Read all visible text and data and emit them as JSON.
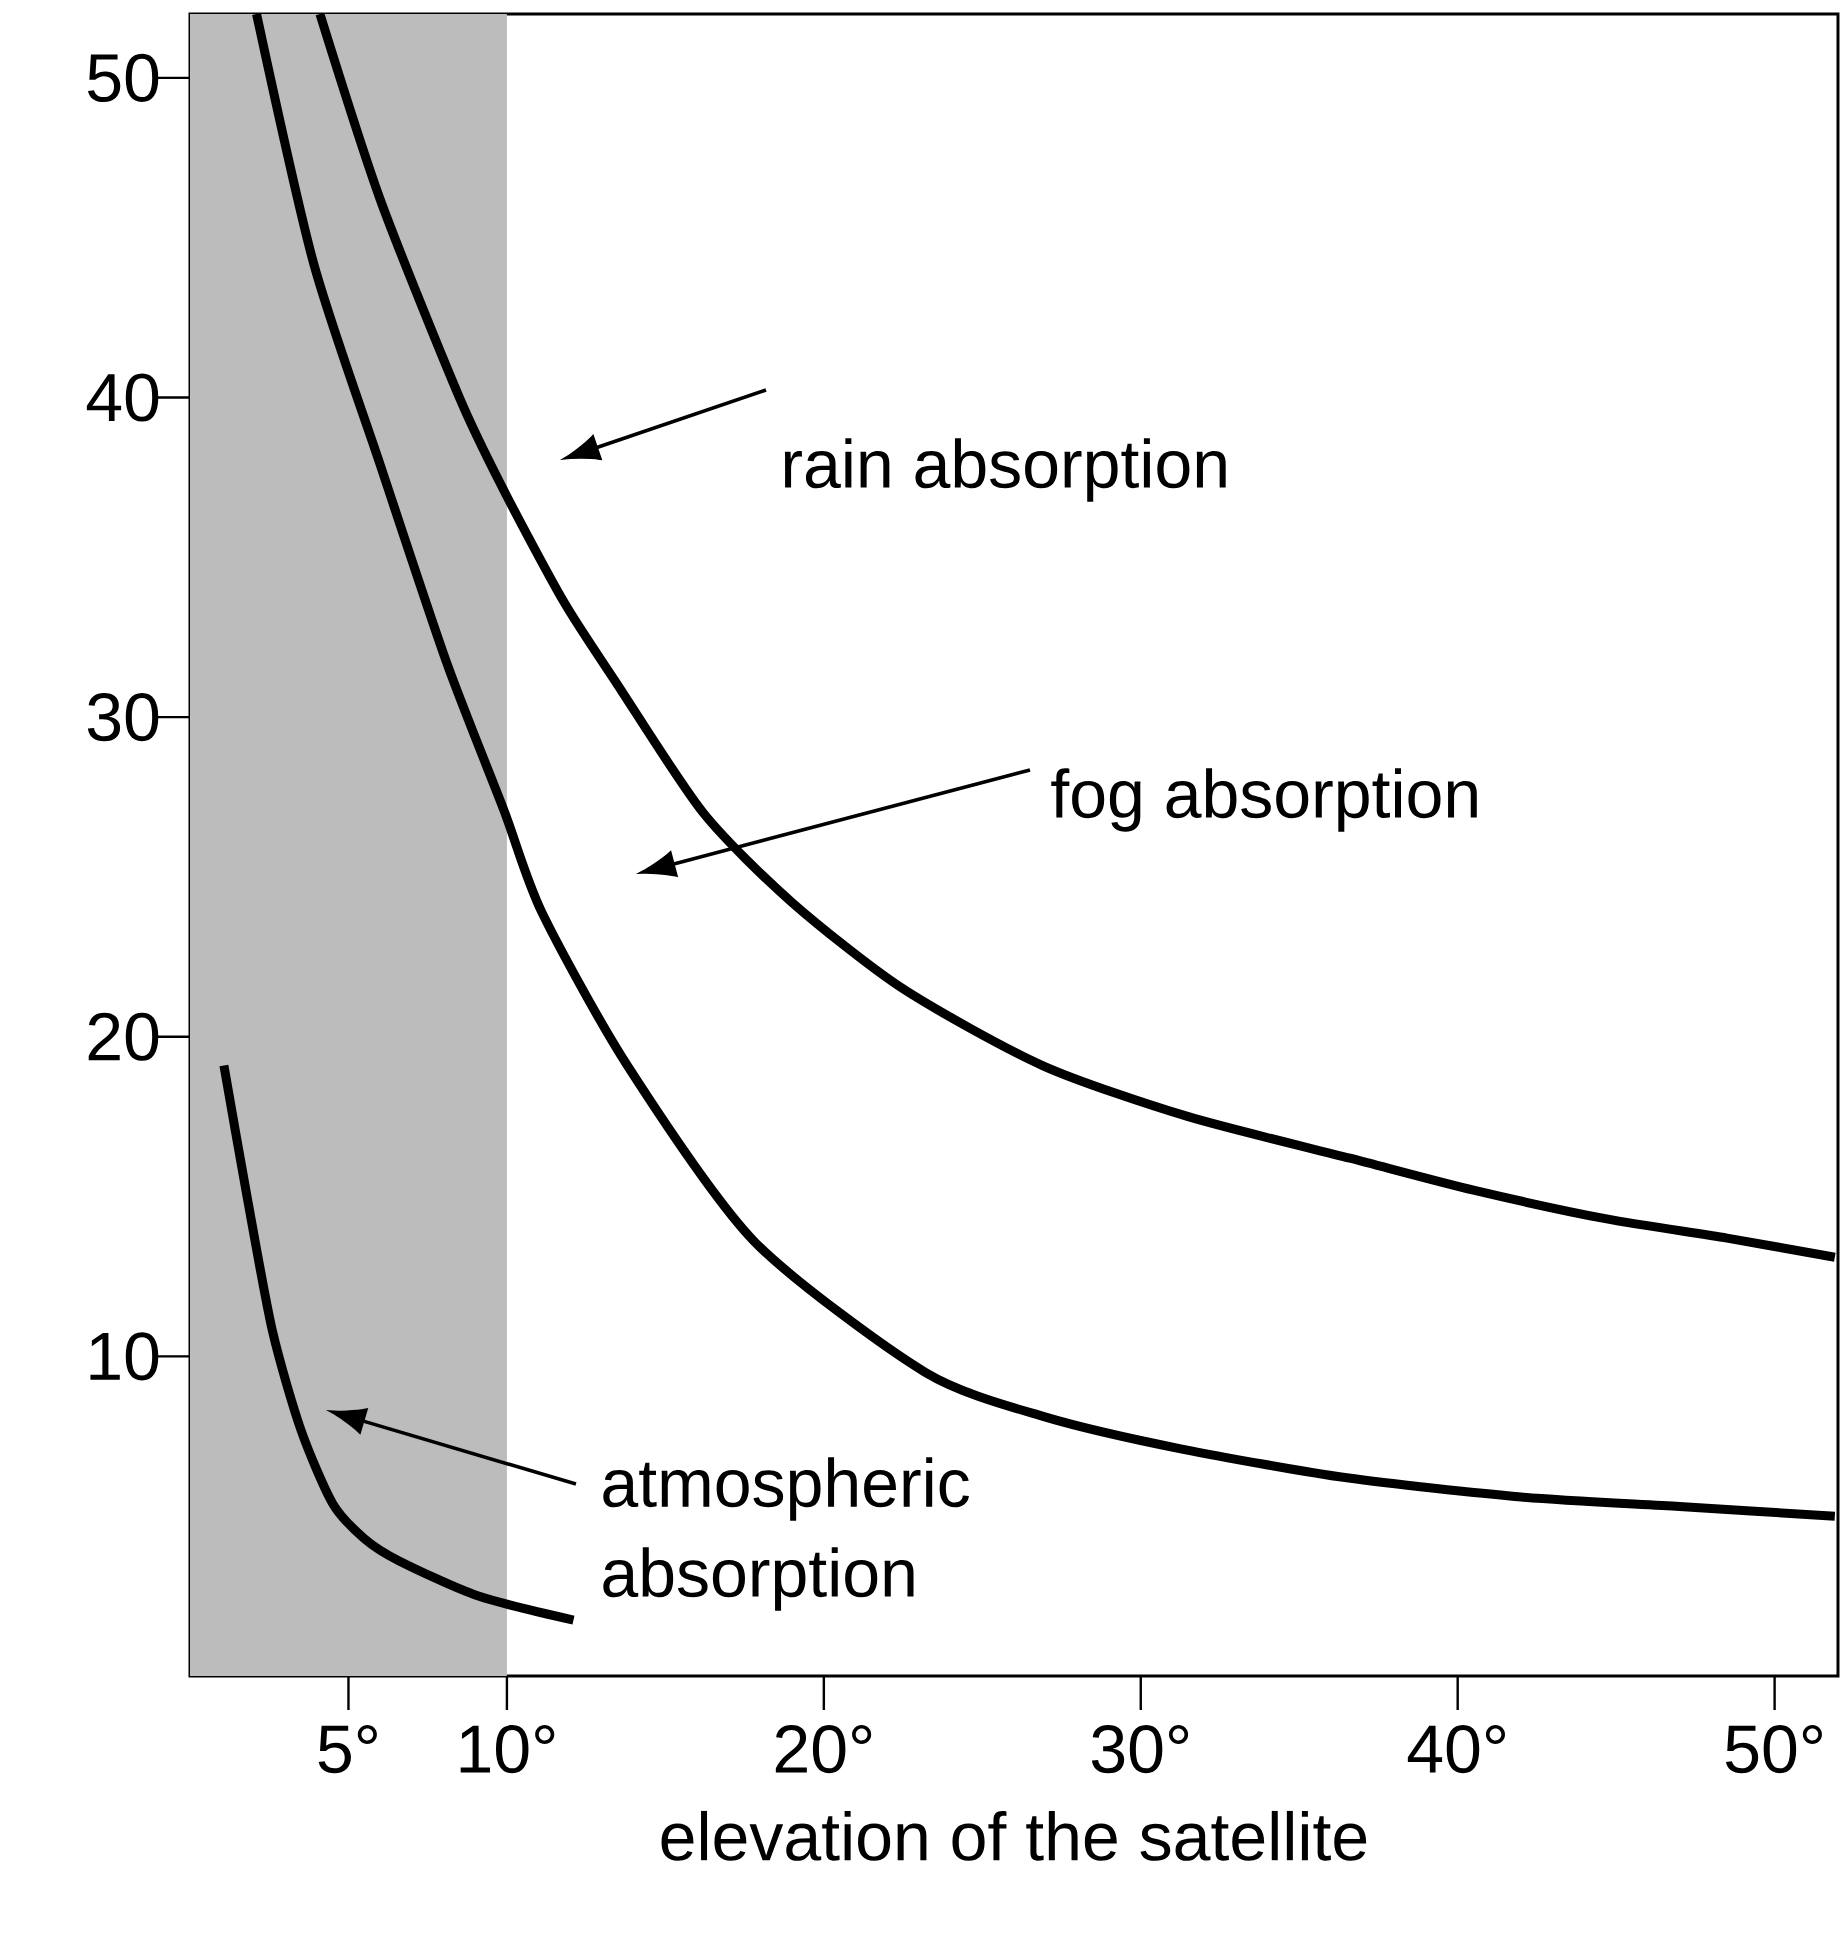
{
  "chart_data": {
    "type": "line",
    "xlabel": "elevation of the satellite",
    "xlim": [
      0,
      52
    ],
    "ylim": [
      0,
      52
    ],
    "xticks": [
      {
        "value": 5,
        "label": "5°"
      },
      {
        "value": 10,
        "label": "10°"
      },
      {
        "value": 20,
        "label": "20°"
      },
      {
        "value": 30,
        "label": "30°"
      },
      {
        "value": 40,
        "label": "40°"
      },
      {
        "value": 50,
        "label": "50°"
      }
    ],
    "yticks": [
      10,
      20,
      30,
      40,
      50
    ],
    "series": [
      {
        "color": "#000000",
        "x": [
          4.1,
          6.0,
          8.5,
          9.9,
          11.8,
          13.5,
          16.2,
          19.0,
          22.5,
          26.9,
          31.5,
          36.6,
          40.5,
          44.7,
          48.5,
          51.9
        ],
        "values": [
          52,
          46.2,
          40,
          37.1,
          33.6,
          31.0,
          27.0,
          24.2,
          21.5,
          19.1,
          17.5,
          16.2,
          15.2,
          14.3,
          13.7,
          13.1
        ]
      },
      {
        "color": "#000000",
        "x": [
          2.1,
          3.9,
          6.0,
          8.1,
          9.9,
          11.1,
          13.8,
          17.8,
          23.2,
          27.0,
          31.3,
          36.5,
          42.0,
          47.0,
          51.9
        ],
        "values": [
          52,
          44.2,
          37.9,
          31.7,
          27.1,
          23.9,
          19.1,
          13.6,
          9.5,
          8.1,
          7.1,
          6.2,
          5.6,
          5.3,
          5.0
        ]
      },
      {
        "color": "#000000",
        "x": [
          1.07,
          1.8,
          2.6,
          3.5,
          4.5,
          5.5,
          6.6,
          9.1,
          12.1
        ],
        "values": [
          19.1,
          15,
          10.8,
          7.7,
          5.4,
          4.3,
          3.6,
          2.5,
          1.75
        ]
      }
    ],
    "bands": [
      {
        "axis": "x",
        "from": 0,
        "to": 10,
        "color": "#bcbcbc"
      }
    ],
    "annotations": [
      "rain absorption",
      "fog absorption",
      "atmospheric absorption"
    ],
    "marker": "none",
    "line_style": "solid"
  }
}
